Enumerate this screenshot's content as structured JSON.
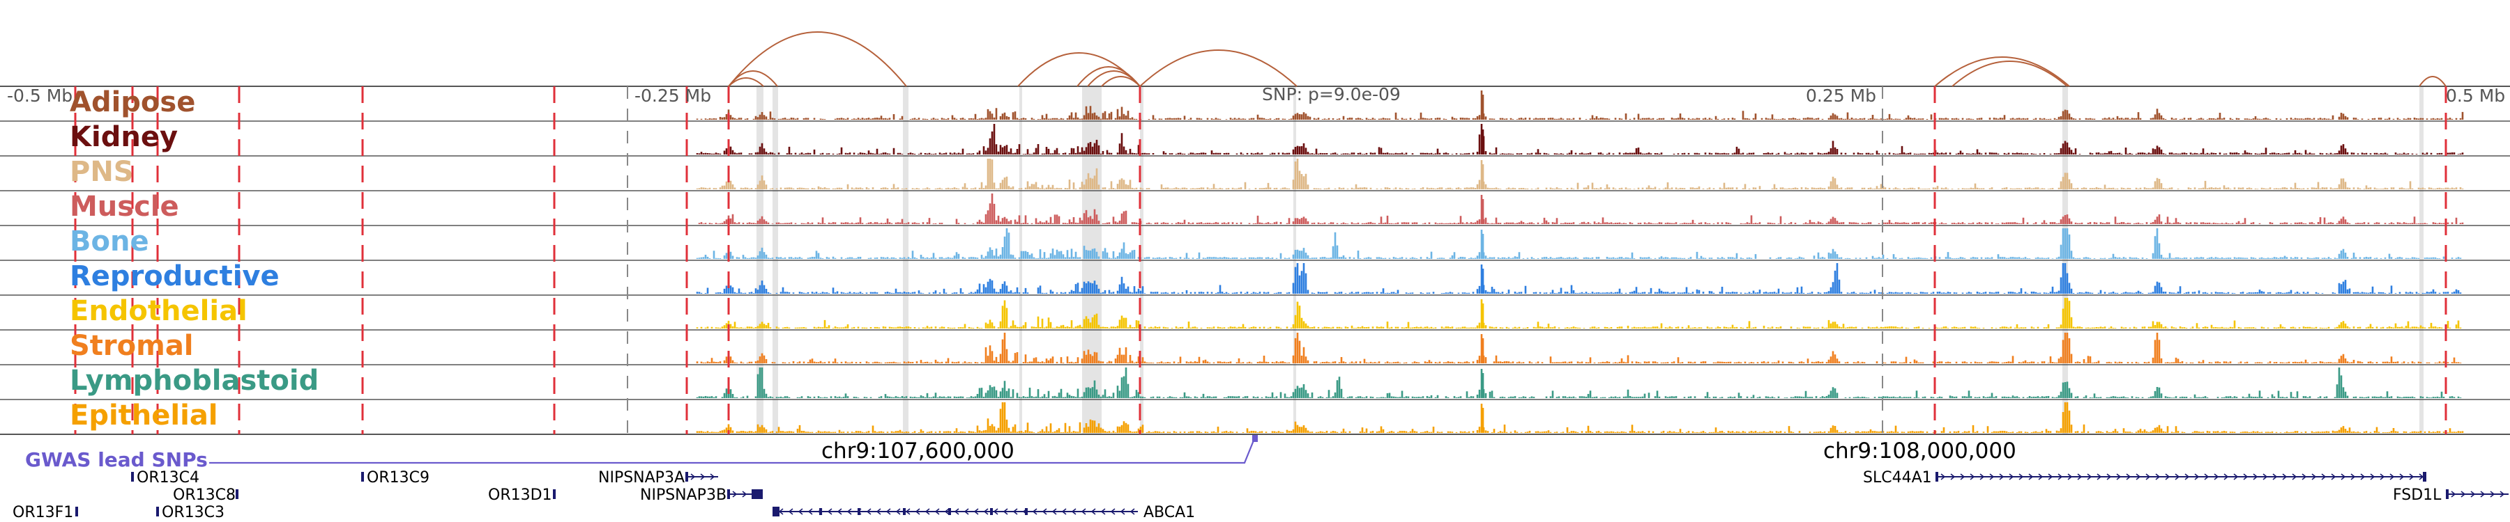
{
  "region": {
    "axis_labels": [
      "-0.5 Mb",
      "-0.25 Mb",
      "0.25 Mb",
      "0.5 Mb"
    ],
    "snp_label": "SNP: p=9.0e-09",
    "coordinates": [
      "chr9:107,600,000",
      "chr9:108,000,000"
    ]
  },
  "tracks": [
    {
      "name": "Adipose",
      "color": "#a0522d"
    },
    {
      "name": "Kidney",
      "color": "#6b0f0f"
    },
    {
      "name": "PNS",
      "color": "#deb887"
    },
    {
      "name": "Muscle",
      "color": "#cd5c5c"
    },
    {
      "name": "Bone",
      "color": "#6cb4e4"
    },
    {
      "name": "Reproductive",
      "color": "#2e7fe0"
    },
    {
      "name": "Endothelial",
      "color": "#f5c400"
    },
    {
      "name": "Stromal",
      "color": "#f07f1e"
    },
    {
      "name": "Lymphoblastoid",
      "color": "#3a9a85"
    },
    {
      "name": "Epithelial",
      "color": "#f5a000"
    }
  ],
  "gwas": {
    "label": "GWAS lead SNPs",
    "color": "#6a5acd"
  },
  "genes": [
    {
      "name": "OR13C4",
      "strand": "+"
    },
    {
      "name": "OR13C9",
      "strand": "+"
    },
    {
      "name": "OR13C8",
      "strand": "+"
    },
    {
      "name": "OR13D1",
      "strand": "+"
    },
    {
      "name": "OR13F1",
      "strand": "+"
    },
    {
      "name": "OR13C3",
      "strand": "+"
    },
    {
      "name": "NIPSNAP3A",
      "strand": "+"
    },
    {
      "name": "NIPSNAP3B",
      "strand": "+"
    },
    {
      "name": "ABCA1",
      "strand": "-"
    },
    {
      "name": "SLC44A1",
      "strand": "+"
    },
    {
      "name": "FSD1L",
      "strand": "+"
    }
  ],
  "colors": {
    "highlight_line": "#e0303a",
    "link_arc": "#b5603a",
    "gene": "#1a1a6e"
  }
}
